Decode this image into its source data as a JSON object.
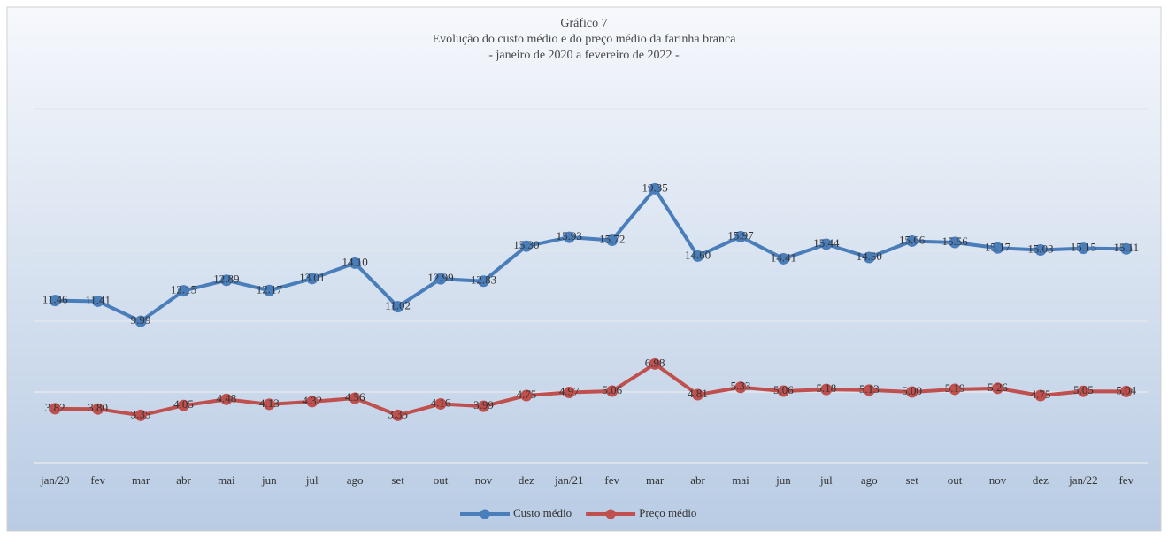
{
  "chart_data": {
    "type": "line",
    "title": "Gráfico 7",
    "subtitle": [
      "Evolução do custo médio e do preço médio da farinha branca",
      "- janeiro de 2020 a fevereiro de 2022 -"
    ],
    "categories": [
      "jan/20",
      "fev",
      "mar",
      "abr",
      "mai",
      "jun",
      "jul",
      "ago",
      "set",
      "out",
      "nov",
      "dez",
      "jan/21",
      "fev",
      "mar",
      "abr",
      "mai",
      "jun",
      "jul",
      "ago",
      "set",
      "out",
      "nov",
      "dez",
      "jan/22",
      "fev"
    ],
    "series": [
      {
        "name": "Custo médio",
        "color": "#4a7ebb",
        "values": [
          11.46,
          11.41,
          9.99,
          12.15,
          12.89,
          12.17,
          13.01,
          14.1,
          11.02,
          12.99,
          12.83,
          15.3,
          15.93,
          15.72,
          19.35,
          14.6,
          15.97,
          14.41,
          15.44,
          14.5,
          15.66,
          15.56,
          15.17,
          15.03,
          15.15,
          15.11
        ],
        "value_labels": [
          "11.46",
          "11.41",
          "9.99",
          "12.15",
          "12.89",
          "12.17",
          "13.01",
          "14.10",
          "11.02",
          "12.99",
          "12.83",
          "15.30",
          "15.93",
          "15.72",
          "19.35",
          "14.60",
          "15.97",
          "14.41",
          "15.44",
          "14.50",
          "15.66",
          "15.56",
          "15.17",
          "15.03",
          "15.15",
          "15.11"
        ]
      },
      {
        "name": "Preço médio",
        "color": "#c0504d",
        "values": [
          3.82,
          3.8,
          3.35,
          4.05,
          4.48,
          4.13,
          4.32,
          4.56,
          3.35,
          4.16,
          3.99,
          4.75,
          4.97,
          5.06,
          6.98,
          4.81,
          5.33,
          5.06,
          5.18,
          5.13,
          5.0,
          5.19,
          5.26,
          4.75,
          5.05,
          5.04
        ],
        "value_labels": [
          "3.82",
          "3.80",
          "3.35",
          "4.05",
          "4.48",
          "4.13",
          "4.32",
          "4.56",
          "3.35",
          "4.16",
          "3.99",
          "4.75",
          "4.97",
          "5.06",
          "6.98",
          "4.81",
          "5.33",
          "5.06",
          "5.18",
          "5.13",
          "5.00",
          "5.19",
          "5.26",
          "4.75",
          "5.05",
          "5.04"
        ]
      }
    ],
    "ylim": [
      0,
      25
    ],
    "yticks": [
      0,
      5,
      10,
      15,
      20,
      25
    ],
    "grid": true,
    "legend": "bottom"
  }
}
